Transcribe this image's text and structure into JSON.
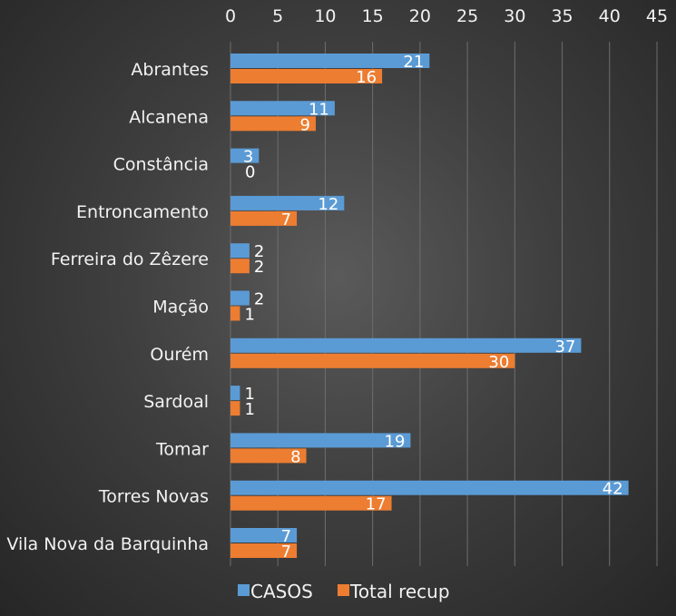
{
  "chart_data": {
    "type": "bar",
    "orientation": "horizontal",
    "categories": [
      "Abrantes",
      "Alcanena",
      "Constância",
      "Entroncamento",
      "Ferreira do Zêzere",
      "Mação",
      "Ourém",
      "Sardoal",
      "Tomar",
      "Torres Novas",
      "Vila Nova da Barquinha"
    ],
    "series": [
      {
        "name": "CASOS",
        "color": "#5b9bd5",
        "values": [
          21,
          11,
          3,
          12,
          2,
          2,
          37,
          1,
          19,
          42,
          7
        ]
      },
      {
        "name": "Total recup",
        "color": "#ed7d31",
        "values": [
          16,
          9,
          0,
          7,
          2,
          1,
          30,
          1,
          8,
          17,
          7
        ]
      }
    ],
    "xlim": [
      0,
      45
    ],
    "xticks": [
      0,
      5,
      10,
      15,
      20,
      25,
      30,
      35,
      40,
      45
    ],
    "x_axis_position": "top",
    "grid": true,
    "legend_position": "bottom",
    "data_labels": true
  }
}
